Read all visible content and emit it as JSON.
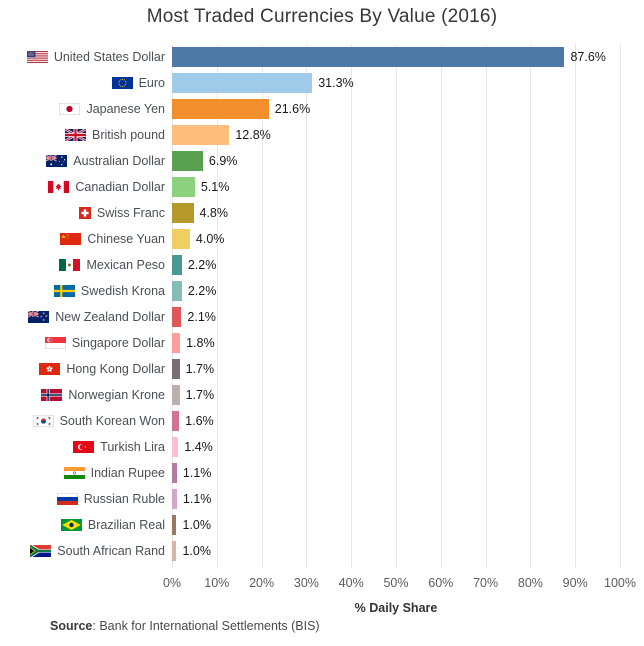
{
  "chart_data": {
    "type": "bar",
    "orientation": "horizontal",
    "title": "Most Traded Currencies By Value (2016)",
    "xlabel": "% Daily Share",
    "ylabel": "",
    "xlim": [
      0,
      100
    ],
    "grid": true,
    "legend": false,
    "x_ticks": [
      "0%",
      "10%",
      "20%",
      "30%",
      "40%",
      "50%",
      "60%",
      "70%",
      "80%",
      "90%",
      "100%"
    ],
    "gridline_color": "#e7e7e7",
    "source_label": "Source",
    "source_text": ": Bank for International Settlements (BIS)",
    "rows": [
      {
        "label": "United States Dollar",
        "value": 87.6,
        "value_label": "87.6%",
        "color": "#4E79A7",
        "flag": "us",
        "flag_icon": "us-flag-icon"
      },
      {
        "label": "Euro",
        "value": 31.3,
        "value_label": "31.3%",
        "color": "#A0CBE8",
        "flag": "eu",
        "flag_icon": "eu-flag-icon"
      },
      {
        "label": "Japanese Yen",
        "value": 21.6,
        "value_label": "21.6%",
        "color": "#F28E2B",
        "flag": "jp",
        "flag_icon": "japan-flag-icon"
      },
      {
        "label": "British pound",
        "value": 12.8,
        "value_label": "12.8%",
        "color": "#FFBE7D",
        "flag": "gb",
        "flag_icon": "uk-flag-icon"
      },
      {
        "label": "Australian Dollar",
        "value": 6.9,
        "value_label": "6.9%",
        "color": "#59A14F",
        "flag": "au",
        "flag_icon": "australia-flag-icon"
      },
      {
        "label": "Canadian Dollar",
        "value": 5.1,
        "value_label": "5.1%",
        "color": "#8CD17D",
        "flag": "ca",
        "flag_icon": "canada-flag-icon"
      },
      {
        "label": "Swiss Franc",
        "value": 4.8,
        "value_label": "4.8%",
        "color": "#B6992D",
        "flag": "ch",
        "flag_icon": "switzerland-flag-icon"
      },
      {
        "label": "Chinese Yuan",
        "value": 4.0,
        "value_label": "4.0%",
        "color": "#F1CE63",
        "flag": "cn",
        "flag_icon": "china-flag-icon"
      },
      {
        "label": "Mexican Peso",
        "value": 2.2,
        "value_label": "2.2%",
        "color": "#499894",
        "flag": "mx",
        "flag_icon": "mexico-flag-icon"
      },
      {
        "label": "Swedish Krona",
        "value": 2.2,
        "value_label": "2.2%",
        "color": "#86BCB6",
        "flag": "se",
        "flag_icon": "sweden-flag-icon"
      },
      {
        "label": "New Zealand Dollar",
        "value": 2.1,
        "value_label": "2.1%",
        "color": "#E15759",
        "flag": "nz",
        "flag_icon": "new-zealand-flag-icon"
      },
      {
        "label": "Singapore Dollar",
        "value": 1.8,
        "value_label": "1.8%",
        "color": "#FF9D9A",
        "flag": "sg",
        "flag_icon": "singapore-flag-icon"
      },
      {
        "label": "Hong Kong Dollar",
        "value": 1.7,
        "value_label": "1.7%",
        "color": "#79706E",
        "flag": "hk",
        "flag_icon": "hong-kong-flag-icon"
      },
      {
        "label": "Norwegian Krone",
        "value": 1.7,
        "value_label": "1.7%",
        "color": "#BAB0AC",
        "flag": "no",
        "flag_icon": "norway-flag-icon"
      },
      {
        "label": "South Korean Won",
        "value": 1.6,
        "value_label": "1.6%",
        "color": "#D37295",
        "flag": "kr",
        "flag_icon": "south-korea-flag-icon"
      },
      {
        "label": "Turkish Lira",
        "value": 1.4,
        "value_label": "1.4%",
        "color": "#FABFD2",
        "flag": "tr",
        "flag_icon": "turkey-flag-icon"
      },
      {
        "label": "Indian Rupee",
        "value": 1.1,
        "value_label": "1.1%",
        "color": "#B07AA1",
        "flag": "in",
        "flag_icon": "india-flag-icon"
      },
      {
        "label": "Russian Ruble",
        "value": 1.1,
        "value_label": "1.1%",
        "color": "#D4A6C8",
        "flag": "ru",
        "flag_icon": "russia-flag-icon"
      },
      {
        "label": "Brazilian Real",
        "value": 1.0,
        "value_label": "1.0%",
        "color": "#9D7660",
        "flag": "br",
        "flag_icon": "brazil-flag-icon"
      },
      {
        "label": "South African Rand",
        "value": 1.0,
        "value_label": "1.0%",
        "color": "#D7B5A6",
        "flag": "za",
        "flag_icon": "south-africa-flag-icon"
      }
    ]
  }
}
